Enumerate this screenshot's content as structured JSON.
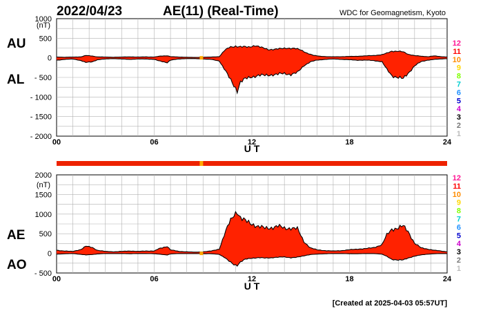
{
  "header": {
    "date": "2022/04/23",
    "title": "AE(11) (Real-Time)",
    "source": "WDC for Geomagnetism, Kyoto"
  },
  "footer": {
    "created": "[Created at 2025-04-03 05:57UT]"
  },
  "colors": {
    "fill": "#ff2200",
    "outline": "#000000",
    "grid": "#b0b0b0",
    "bar": "#ee2200",
    "bar_marker": "#ffaa00"
  },
  "station_legend": [
    {
      "label": "12",
      "color": "#ff1493"
    },
    {
      "label": "11",
      "color": "#ff0000"
    },
    {
      "label": "10",
      "color": "#ff8c00"
    },
    {
      "label": "9",
      "color": "#ffd700"
    },
    {
      "label": "8",
      "color": "#7fff00"
    },
    {
      "label": "7",
      "color": "#00ced1"
    },
    {
      "label": "6",
      "color": "#1e90ff"
    },
    {
      "label": "5",
      "color": "#0000cd"
    },
    {
      "label": "4",
      "color": "#cc00cc"
    },
    {
      "label": "3",
      "color": "#000000"
    },
    {
      "label": "2",
      "color": "#777777"
    },
    {
      "label": "1",
      "color": "#bbbbbb"
    }
  ],
  "station_bar": {
    "marker_hour": 8.9
  },
  "chart_data": [
    {
      "type": "area",
      "unit_label": "(nT)",
      "xlabel": "U T",
      "upper_label": "AU",
      "lower_label": "AL",
      "xlim": [
        0,
        24
      ],
      "ylim": [
        -2000,
        1000
      ],
      "xticks": [
        0,
        6,
        12,
        18,
        24
      ],
      "xtick_labels": [
        "00",
        "06",
        "12",
        "18",
        "24"
      ],
      "yticks": [
        1000,
        500,
        0,
        -500,
        -1000,
        -1500,
        -2000
      ],
      "ytick_labels": [
        "1000",
        "500",
        "0",
        "- 500",
        "- 1000",
        "- 1500",
        "- 2000"
      ],
      "series": [
        {
          "name": "AU",
          "x": [
            0,
            0.5,
            1,
            1.5,
            1.8,
            2.2,
            2.5,
            3,
            3.5,
            4,
            4.5,
            5,
            5.5,
            6,
            6.3,
            6.8,
            7,
            7.5,
            8,
            8.5,
            9,
            9.5,
            10,
            10.3,
            10.6,
            11,
            11.4,
            11.8,
            12.2,
            12.6,
            13,
            13.4,
            13.8,
            14.2,
            14.6,
            15,
            15.4,
            15.8,
            16.2,
            16.6,
            17,
            17.5,
            18,
            18.5,
            19,
            19.5,
            20,
            20.3,
            20.6,
            21,
            21.3,
            21.6,
            22,
            22.4,
            22.8,
            23.2,
            23.6,
            24
          ],
          "values": [
            20,
            15,
            20,
            25,
            60,
            45,
            25,
            20,
            15,
            20,
            25,
            20,
            25,
            20,
            40,
            55,
            30,
            20,
            15,
            10,
            15,
            20,
            30,
            180,
            260,
            300,
            280,
            270,
            320,
            260,
            210,
            220,
            230,
            250,
            240,
            200,
            120,
            60,
            40,
            30,
            25,
            30,
            35,
            40,
            50,
            60,
            80,
            120,
            170,
            170,
            150,
            90,
            60,
            40,
            30,
            50,
            30,
            20
          ]
        },
        {
          "name": "AL",
          "x": [
            0,
            0.5,
            1,
            1.5,
            1.8,
            2.2,
            2.5,
            3,
            3.5,
            4,
            4.5,
            5,
            5.5,
            6,
            6.3,
            6.8,
            7,
            7.5,
            8,
            8.5,
            9,
            9.5,
            10,
            10.3,
            10.6,
            10.9,
            11.1,
            11.3,
            11.6,
            12,
            12.4,
            12.8,
            13.2,
            13.6,
            14,
            14.4,
            14.8,
            15.2,
            15.6,
            16,
            16.5,
            17,
            17.5,
            18,
            18.5,
            19,
            19.5,
            20,
            20.3,
            20.6,
            21,
            21.3,
            21.6,
            22,
            22.4,
            22.8,
            23.2,
            23.6,
            24
          ],
          "values": [
            -60,
            -40,
            -30,
            -70,
            -120,
            -100,
            -50,
            -30,
            -20,
            -30,
            -40,
            -30,
            -30,
            -40,
            -80,
            -120,
            -60,
            -30,
            -20,
            -20,
            -30,
            -40,
            -80,
            -280,
            -500,
            -700,
            -830,
            -620,
            -540,
            -480,
            -450,
            -450,
            -430,
            -420,
            -400,
            -420,
            -380,
            -200,
            -100,
            -60,
            -40,
            -30,
            -40,
            -50,
            -60,
            -60,
            -70,
            -100,
            -300,
            -450,
            -500,
            -540,
            -400,
            -200,
            -100,
            -60,
            -40,
            -30,
            -20
          ]
        }
      ]
    },
    {
      "type": "area",
      "unit_label": "(nT)",
      "xlabel": "U T",
      "upper_label": "AE",
      "lower_label": "AO",
      "xlim": [
        0,
        24
      ],
      "ylim": [
        -500,
        2000
      ],
      "xticks": [
        0,
        6,
        12,
        18,
        24
      ],
      "xtick_labels": [
        "00",
        "06",
        "12",
        "18",
        "24"
      ],
      "yticks": [
        2000,
        1500,
        1000,
        500,
        0,
        -500
      ],
      "ytick_labels": [
        "2000",
        "1500",
        "1000",
        "500",
        "0",
        "- 500"
      ],
      "series": [
        {
          "name": "AE",
          "x": [
            0,
            0.5,
            1,
            1.5,
            1.8,
            2.2,
            2.5,
            3,
            3.5,
            4,
            4.5,
            5,
            5.5,
            6,
            6.3,
            6.8,
            7,
            7.5,
            8,
            8.5,
            9,
            9.5,
            10,
            10.3,
            10.6,
            10.9,
            11.1,
            11.3,
            11.6,
            12,
            12.4,
            12.8,
            13.2,
            13.6,
            14,
            14.4,
            14.8,
            15.2,
            15.6,
            16,
            16.5,
            17,
            17.5,
            18,
            18.5,
            19,
            19.5,
            20,
            20.3,
            20.6,
            21,
            21.3,
            21.6,
            22,
            22.4,
            22.8,
            23.2,
            23.6,
            24
          ],
          "values": [
            80,
            60,
            50,
            100,
            180,
            150,
            80,
            50,
            40,
            50,
            60,
            50,
            60,
            60,
            120,
            180,
            90,
            50,
            40,
            30,
            40,
            60,
            110,
            460,
            760,
            1000,
            1080,
            900,
            820,
            760,
            680,
            640,
            660,
            690,
            640,
            650,
            620,
            300,
            140,
            90,
            70,
            60,
            70,
            90,
            110,
            120,
            150,
            220,
            470,
            620,
            650,
            690,
            560,
            260,
            140,
            110,
            80,
            60,
            40
          ]
        },
        {
          "name": "AO",
          "x": [
            0,
            0.5,
            1,
            1.5,
            1.8,
            2.2,
            2.5,
            3,
            3.5,
            4,
            4.5,
            5,
            5.5,
            6,
            6.3,
            6.8,
            7,
            7.5,
            8,
            8.5,
            9,
            9.5,
            10,
            10.3,
            10.6,
            10.9,
            11.1,
            11.3,
            11.6,
            12,
            12.4,
            12.8,
            13.2,
            13.6,
            14,
            14.4,
            14.8,
            15.2,
            15.6,
            16,
            16.5,
            17,
            17.5,
            18,
            18.5,
            19,
            19.5,
            20,
            20.3,
            20.6,
            21,
            21.3,
            21.6,
            22,
            22.4,
            22.8,
            23.2,
            23.6,
            24
          ],
          "values": [
            -20,
            -10,
            -5,
            -25,
            -40,
            -30,
            -15,
            -5,
            -5,
            -5,
            -10,
            -5,
            -5,
            -10,
            -20,
            -40,
            -15,
            -5,
            -5,
            -5,
            -10,
            -10,
            -25,
            -100,
            -200,
            -280,
            -300,
            -220,
            -150,
            -120,
            -110,
            -120,
            -110,
            -100,
            -90,
            -110,
            -100,
            -60,
            -30,
            -20,
            -10,
            -5,
            -5,
            -10,
            -10,
            -5,
            -5,
            -20,
            -80,
            -150,
            -170,
            -170,
            -120,
            -70,
            -40,
            -20,
            -10,
            -5,
            -5
          ]
        }
      ]
    }
  ]
}
